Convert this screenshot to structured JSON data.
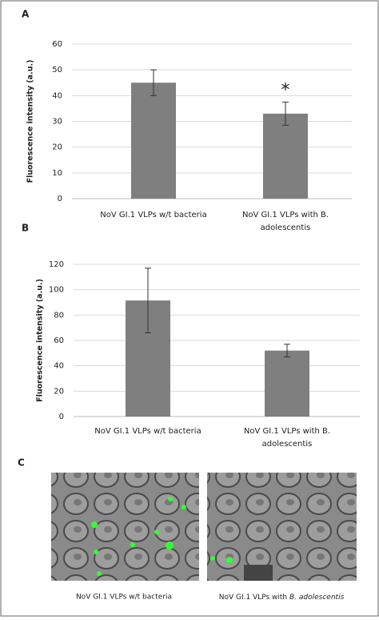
{
  "chart_data": [
    {
      "type": "bar",
      "label": "A",
      "y_label": "Fluorescence intensity (a.u.)",
      "categories": [
        [
          "NoV GI.1 VLPs w/t bacteria"
        ],
        [
          "NoV GI.1 VLPs with B.",
          "adolescentis"
        ]
      ],
      "values": [
        45,
        33
      ],
      "errors": [
        5,
        4.5
      ],
      "color": "#7f7f7f",
      "annotations": [
        null,
        "*"
      ],
      "ylim": [
        0,
        60
      ],
      "yticks": [
        0,
        10,
        20,
        30,
        40,
        50,
        60
      ],
      "grid": true
    },
    {
      "type": "bar",
      "label": "B",
      "y_label": "Fluorescence intensity (a.u.)",
      "categories": [
        [
          "NoV GI.1 VLPs w/t bacteria"
        ],
        [
          "NoV GI.1 VLPs with B.",
          "adolescentis"
        ]
      ],
      "values": [
        91.5,
        52
      ],
      "errors": [
        25.5,
        5
      ],
      "color": "#7f7f7f",
      "annotations": [
        null,
        null
      ],
      "ylim": [
        0,
        120
      ],
      "yticks": [
        0,
        20,
        40,
        60,
        80,
        100,
        120
      ],
      "grid": true
    }
  ],
  "panel_c": {
    "label": "C",
    "captions": [
      {
        "text": "NoV GI.1 VLPs w/t bacteria"
      },
      {
        "text": "NoV GI.1 VLPs with ",
        "italic": "B. adolescentis"
      }
    ]
  }
}
